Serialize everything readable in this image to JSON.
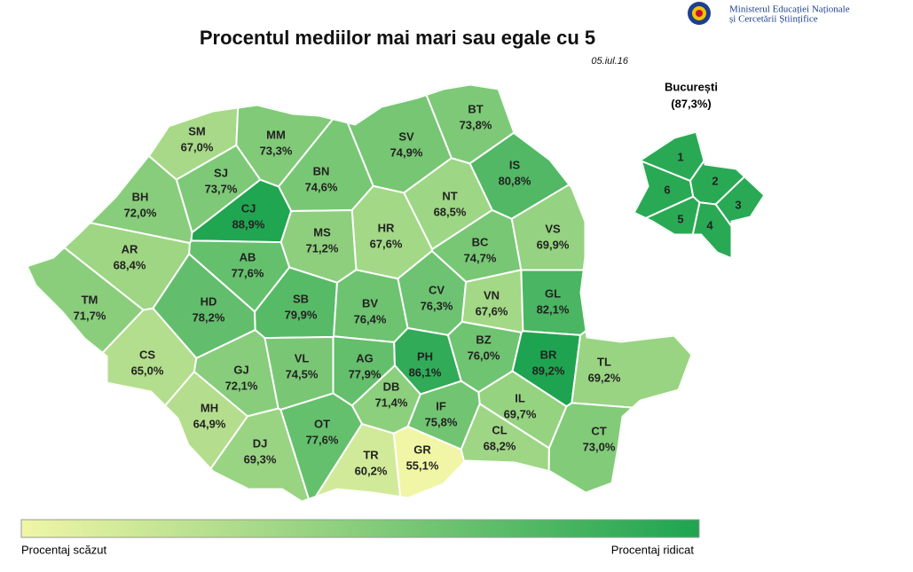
{
  "header": {
    "ministry_line1": "Ministerul Educației Naționale",
    "ministry_line2": "și Cercetării Științifice"
  },
  "title": "Procentul mediilor mai mari sau egale cu 5",
  "date": "05.iul.16",
  "counties": [
    {
      "code": "SM",
      "value": 67.0,
      "label": "67,0%"
    },
    {
      "code": "MM",
      "value": 73.3,
      "label": "73,3%"
    },
    {
      "code": "BT",
      "value": 73.8,
      "label": "73,8%"
    },
    {
      "code": "SV",
      "value": 74.9,
      "label": "74,9%"
    },
    {
      "code": "SJ",
      "value": 73.7,
      "label": "73,7%"
    },
    {
      "code": "BN",
      "value": 74.6,
      "label": "74,6%"
    },
    {
      "code": "IS",
      "value": 80.8,
      "label": "80,8%"
    },
    {
      "code": "BH",
      "value": 72.0,
      "label": "72,0%"
    },
    {
      "code": "CJ",
      "value": 88.9,
      "label": "88,9%"
    },
    {
      "code": "NT",
      "value": 68.5,
      "label": "68,5%"
    },
    {
      "code": "HR",
      "value": 67.6,
      "label": "67,6%"
    },
    {
      "code": "MS",
      "value": 71.2,
      "label": "71,2%"
    },
    {
      "code": "VS",
      "value": 69.9,
      "label": "69,9%"
    },
    {
      "code": "AR",
      "value": 68.4,
      "label": "68,4%"
    },
    {
      "code": "AB",
      "value": 77.6,
      "label": "77,6%"
    },
    {
      "code": "BC",
      "value": 74.7,
      "label": "74,7%"
    },
    {
      "code": "TM",
      "value": 71.7,
      "label": "71,7%"
    },
    {
      "code": "HD",
      "value": 78.2,
      "label": "78,2%"
    },
    {
      "code": "SB",
      "value": 79.9,
      "label": "79,9%"
    },
    {
      "code": "BV",
      "value": 76.4,
      "label": "76,4%"
    },
    {
      "code": "CV",
      "value": 76.3,
      "label": "76,3%"
    },
    {
      "code": "VN",
      "value": 67.6,
      "label": "67,6%"
    },
    {
      "code": "GL",
      "value": 82.1,
      "label": "82,1%"
    },
    {
      "code": "CS",
      "value": 65.0,
      "label": "65,0%"
    },
    {
      "code": "GJ",
      "value": 72.1,
      "label": "72,1%"
    },
    {
      "code": "VL",
      "value": 74.5,
      "label": "74,5%"
    },
    {
      "code": "AG",
      "value": 77.9,
      "label": "77,9%"
    },
    {
      "code": "PH",
      "value": 86.1,
      "label": "86,1%"
    },
    {
      "code": "BZ",
      "value": 76.0,
      "label": "76,0%"
    },
    {
      "code": "BR",
      "value": 89.2,
      "label": "89,2%"
    },
    {
      "code": "TL",
      "value": 69.2,
      "label": "69,2%"
    },
    {
      "code": "DB",
      "value": 71.4,
      "label": "71,4%"
    },
    {
      "code": "MH",
      "value": 64.9,
      "label": "64,9%"
    },
    {
      "code": "IL",
      "value": 69.7,
      "label": "69,7%"
    },
    {
      "code": "DJ",
      "value": 69.3,
      "label": "69,3%"
    },
    {
      "code": "OT",
      "value": 77.6,
      "label": "77,6%"
    },
    {
      "code": "IF",
      "value": 75.8,
      "label": "75,8%"
    },
    {
      "code": "TR",
      "value": 60.2,
      "label": "60,2%"
    },
    {
      "code": "GR",
      "value": 55.1,
      "label": "55,1%"
    },
    {
      "code": "CL",
      "value": 68.2,
      "label": "68,2%"
    },
    {
      "code": "CT",
      "value": 73.0,
      "label": "73,0%"
    }
  ],
  "bucharest": {
    "title": "București",
    "label": "(87,3%)",
    "value": 87.3,
    "sectors": [
      "1",
      "2",
      "3",
      "4",
      "5",
      "6"
    ]
  },
  "legend": {
    "low": "Procentaj scăzut",
    "high": "Procentaj ridicat"
  }
}
